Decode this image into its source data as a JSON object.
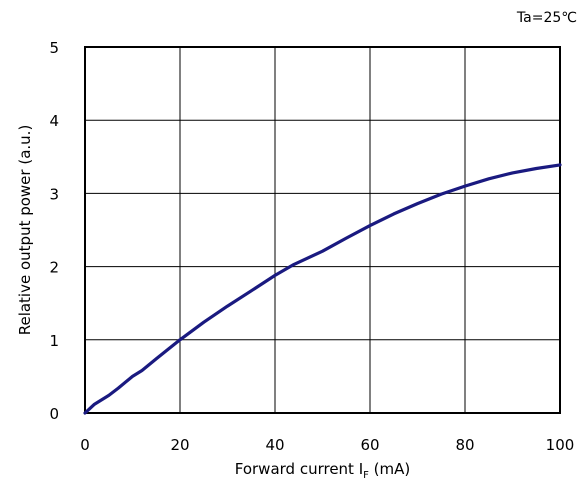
{
  "chart_data": {
    "type": "line",
    "annotation": "Ta=25℃",
    "xlabel": {
      "main": "Forward current I",
      "subscript": "F",
      "unit": " (mA)"
    },
    "ylabel": "Relative output power (a.u.)",
    "xlim": [
      0,
      100
    ],
    "ylim": [
      0,
      5
    ],
    "xticks": [
      0,
      20,
      40,
      60,
      80,
      100
    ],
    "yticks": [
      0,
      1,
      2,
      3,
      4,
      5
    ],
    "grid": true,
    "line_color": "#1a1a80",
    "series": [
      {
        "x": [
          0,
          1,
          2,
          5,
          7,
          10,
          12,
          15,
          20,
          25,
          30,
          35,
          40,
          44,
          50,
          55,
          60,
          65,
          70,
          75,
          80,
          85,
          90,
          95,
          100
        ],
        "y": [
          0,
          0.06,
          0.12,
          0.24,
          0.34,
          0.5,
          0.58,
          0.74,
          1.0,
          1.24,
          1.46,
          1.67,
          1.88,
          2.03,
          2.21,
          2.39,
          2.56,
          2.72,
          2.86,
          2.99,
          3.1,
          3.2,
          3.28,
          3.34,
          3.39
        ]
      }
    ]
  }
}
